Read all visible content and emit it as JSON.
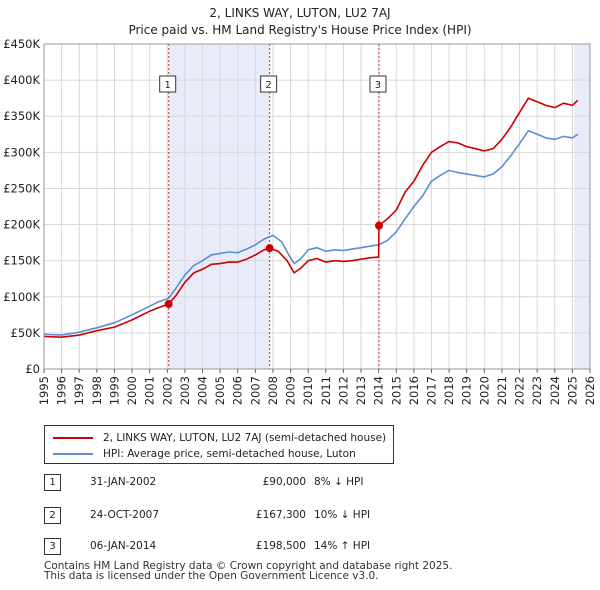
{
  "chart_data": {
    "type": "line",
    "title": "2, LINKS WAY, LUTON, LU2 7AJ",
    "subtitle": "Price paid vs. HM Land Registry's House Price Index (HPI)",
    "xlim": [
      1995,
      2026
    ],
    "ylim": [
      0,
      450000
    ],
    "x_ticks": [
      "1995",
      "1996",
      "1997",
      "1998",
      "1999",
      "2000",
      "2001",
      "2002",
      "2003",
      "2004",
      "2005",
      "2006",
      "2007",
      "2008",
      "2009",
      "2010",
      "2011",
      "2012",
      "2013",
      "2014",
      "2015",
      "2016",
      "2017",
      "2018",
      "2019",
      "2020",
      "2021",
      "2022",
      "2023",
      "2024",
      "2025",
      "2026"
    ],
    "y_ticks": [
      {
        "value": 0,
        "label": "£0"
      },
      {
        "value": 50000,
        "label": "£50K"
      },
      {
        "value": 100000,
        "label": "£100K"
      },
      {
        "value": 150000,
        "label": "£150K"
      },
      {
        "value": 200000,
        "label": "£200K"
      },
      {
        "value": 250000,
        "label": "£250K"
      },
      {
        "value": 300000,
        "label": "£300K"
      },
      {
        "value": 350000,
        "label": "£350K"
      },
      {
        "value": 400000,
        "label": "£400K"
      },
      {
        "value": 450000,
        "label": "£450K"
      }
    ],
    "shaded_ranges": [
      [
        2002.08,
        2007.81
      ],
      [
        2025.1,
        2026
      ]
    ],
    "series": [
      {
        "name": "2, LINKS WAY, LUTON, LU2 7AJ (semi-detached house)",
        "color": "#cc0000",
        "points": [
          [
            1995.0,
            45000
          ],
          [
            1996.0,
            44000
          ],
          [
            1997.0,
            47000
          ],
          [
            1998.0,
            53000
          ],
          [
            1999.0,
            58000
          ],
          [
            2000.0,
            68000
          ],
          [
            2001.0,
            80000
          ],
          [
            2001.5,
            85000
          ],
          [
            2002.08,
            90000
          ],
          [
            2002.5,
            102000
          ],
          [
            2003.0,
            120000
          ],
          [
            2003.5,
            133000
          ],
          [
            2004.0,
            138000
          ],
          [
            2004.5,
            145000
          ],
          [
            2005.0,
            146000
          ],
          [
            2005.5,
            148000
          ],
          [
            2006.0,
            148000
          ],
          [
            2006.5,
            152000
          ],
          [
            2007.0,
            158000
          ],
          [
            2007.5,
            165000
          ],
          [
            2007.81,
            167300
          ],
          [
            2008.3,
            163000
          ],
          [
            2008.8,
            150000
          ],
          [
            2009.2,
            133000
          ],
          [
            2009.6,
            140000
          ],
          [
            2010.0,
            150000
          ],
          [
            2010.5,
            153000
          ],
          [
            2011.0,
            148000
          ],
          [
            2011.5,
            150000
          ],
          [
            2012.0,
            149000
          ],
          [
            2012.5,
            150000
          ],
          [
            2013.0,
            152000
          ],
          [
            2013.5,
            154000
          ],
          [
            2014.0,
            155000
          ],
          [
            2014.02,
            198500
          ],
          [
            2014.5,
            208000
          ],
          [
            2015.0,
            220000
          ],
          [
            2015.5,
            245000
          ],
          [
            2016.0,
            260000
          ],
          [
            2016.5,
            282000
          ],
          [
            2017.0,
            300000
          ],
          [
            2017.5,
            308000
          ],
          [
            2018.0,
            315000
          ],
          [
            2018.5,
            313000
          ],
          [
            2019.0,
            308000
          ],
          [
            2019.5,
            305000
          ],
          [
            2020.0,
            302000
          ],
          [
            2020.5,
            305000
          ],
          [
            2021.0,
            318000
          ],
          [
            2021.5,
            335000
          ],
          [
            2022.0,
            355000
          ],
          [
            2022.5,
            375000
          ],
          [
            2023.0,
            370000
          ],
          [
            2023.5,
            365000
          ],
          [
            2024.0,
            362000
          ],
          [
            2024.5,
            368000
          ],
          [
            2025.0,
            365000
          ],
          [
            2025.3,
            372000
          ]
        ]
      },
      {
        "name": "HPI: Average price, semi-detached house, Luton",
        "color": "#5b8fd0",
        "points": [
          [
            1995.0,
            48000
          ],
          [
            1996.0,
            47000
          ],
          [
            1997.0,
            51000
          ],
          [
            1998.0,
            57000
          ],
          [
            1999.0,
            64000
          ],
          [
            2000.0,
            75000
          ],
          [
            2001.0,
            87000
          ],
          [
            2001.5,
            93000
          ],
          [
            2002.08,
            98000
          ],
          [
            2002.5,
            112000
          ],
          [
            2003.0,
            130000
          ],
          [
            2003.5,
            143000
          ],
          [
            2004.0,
            150000
          ],
          [
            2004.5,
            158000
          ],
          [
            2005.0,
            160000
          ],
          [
            2005.5,
            162000
          ],
          [
            2006.0,
            161000
          ],
          [
            2006.5,
            166000
          ],
          [
            2007.0,
            172000
          ],
          [
            2007.5,
            180000
          ],
          [
            2008.0,
            185000
          ],
          [
            2008.5,
            176000
          ],
          [
            2008.9,
            158000
          ],
          [
            2009.2,
            146000
          ],
          [
            2009.6,
            153000
          ],
          [
            2010.0,
            165000
          ],
          [
            2010.5,
            168000
          ],
          [
            2011.0,
            163000
          ],
          [
            2011.5,
            165000
          ],
          [
            2012.0,
            164000
          ],
          [
            2012.5,
            166000
          ],
          [
            2013.0,
            168000
          ],
          [
            2013.5,
            170000
          ],
          [
            2014.0,
            172000
          ],
          [
            2014.5,
            178000
          ],
          [
            2015.0,
            190000
          ],
          [
            2015.5,
            208000
          ],
          [
            2016.0,
            225000
          ],
          [
            2016.5,
            240000
          ],
          [
            2017.0,
            260000
          ],
          [
            2017.5,
            268000
          ],
          [
            2018.0,
            275000
          ],
          [
            2018.5,
            272000
          ],
          [
            2019.0,
            270000
          ],
          [
            2019.5,
            268000
          ],
          [
            2020.0,
            266000
          ],
          [
            2020.5,
            270000
          ],
          [
            2021.0,
            280000
          ],
          [
            2021.5,
            295000
          ],
          [
            2022.0,
            312000
          ],
          [
            2022.5,
            330000
          ],
          [
            2023.0,
            325000
          ],
          [
            2023.5,
            320000
          ],
          [
            2024.0,
            318000
          ],
          [
            2024.5,
            322000
          ],
          [
            2025.0,
            320000
          ],
          [
            2025.3,
            325000
          ]
        ]
      }
    ],
    "markers": [
      {
        "label": "1",
        "year": 2002.08,
        "value": 90000
      },
      {
        "label": "2",
        "year": 2007.81,
        "value": 167300
      },
      {
        "label": "3",
        "year": 2014.02,
        "value": 198500
      }
    ]
  },
  "legend": {
    "property_label": "2, LINKS WAY, LUTON, LU2 7AJ (semi-detached house)",
    "hpi_label": "HPI: Average price, semi-detached house, Luton"
  },
  "sales": [
    {
      "num": "1",
      "date": "31-JAN-2002",
      "price": "£90,000",
      "hpi": "8% ↓ HPI"
    },
    {
      "num": "2",
      "date": "24-OCT-2007",
      "price": "£167,300",
      "hpi": "10% ↓ HPI"
    },
    {
      "num": "3",
      "date": "06-JAN-2014",
      "price": "£198,500",
      "hpi": "14% ↑ HPI"
    }
  ],
  "footer": {
    "line1": "Contains HM Land Registry data © Crown copyright and database right 2025.",
    "line2": "This data is licensed under the Open Government Licence v3.0."
  }
}
